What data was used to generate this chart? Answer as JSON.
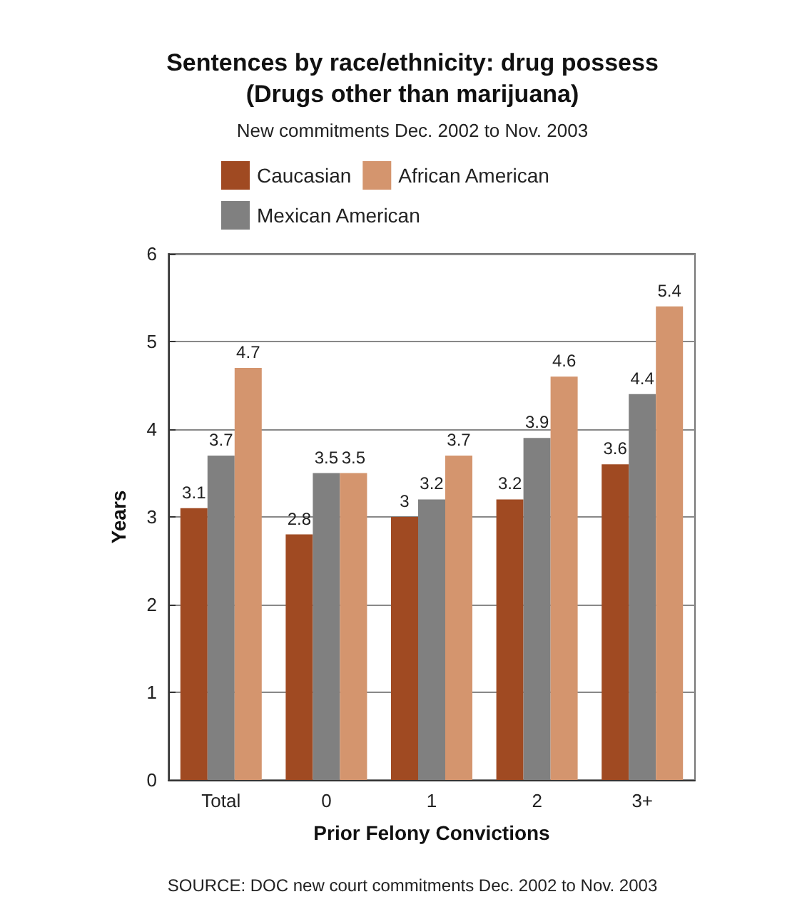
{
  "chart_data": {
    "type": "bar",
    "title": "Sentences by race/ethnicity: drug possess\n(Drugs other than marijuana)",
    "subtitle": "New commitments Dec. 2002 to Nov. 2003",
    "xlabel": "Prior Felony Convictions",
    "ylabel": "Years",
    "categories": [
      "Total",
      "0",
      "1",
      "2",
      "3+"
    ],
    "series": [
      {
        "name": "Caucasian",
        "color": "#a04a22",
        "values": [
          3.1,
          2.8,
          3,
          3.2,
          3.6
        ]
      },
      {
        "name": "Mexican American",
        "color": "#808080",
        "values": [
          3.7,
          3.5,
          3.2,
          3.9,
          4.4
        ]
      },
      {
        "name": "African American",
        "color": "#d4956e",
        "values": [
          4.7,
          3.5,
          3.7,
          4.6,
          5.4
        ]
      }
    ],
    "ylim": [
      0,
      6
    ],
    "yticks": [
      0,
      1,
      2,
      3,
      4,
      5,
      6
    ],
    "grid": "y",
    "legend": "top",
    "data_labels": true,
    "annotations": [
      "SOURCE: DOC new court commitments Dec. 2002 to Nov. 2003"
    ]
  }
}
